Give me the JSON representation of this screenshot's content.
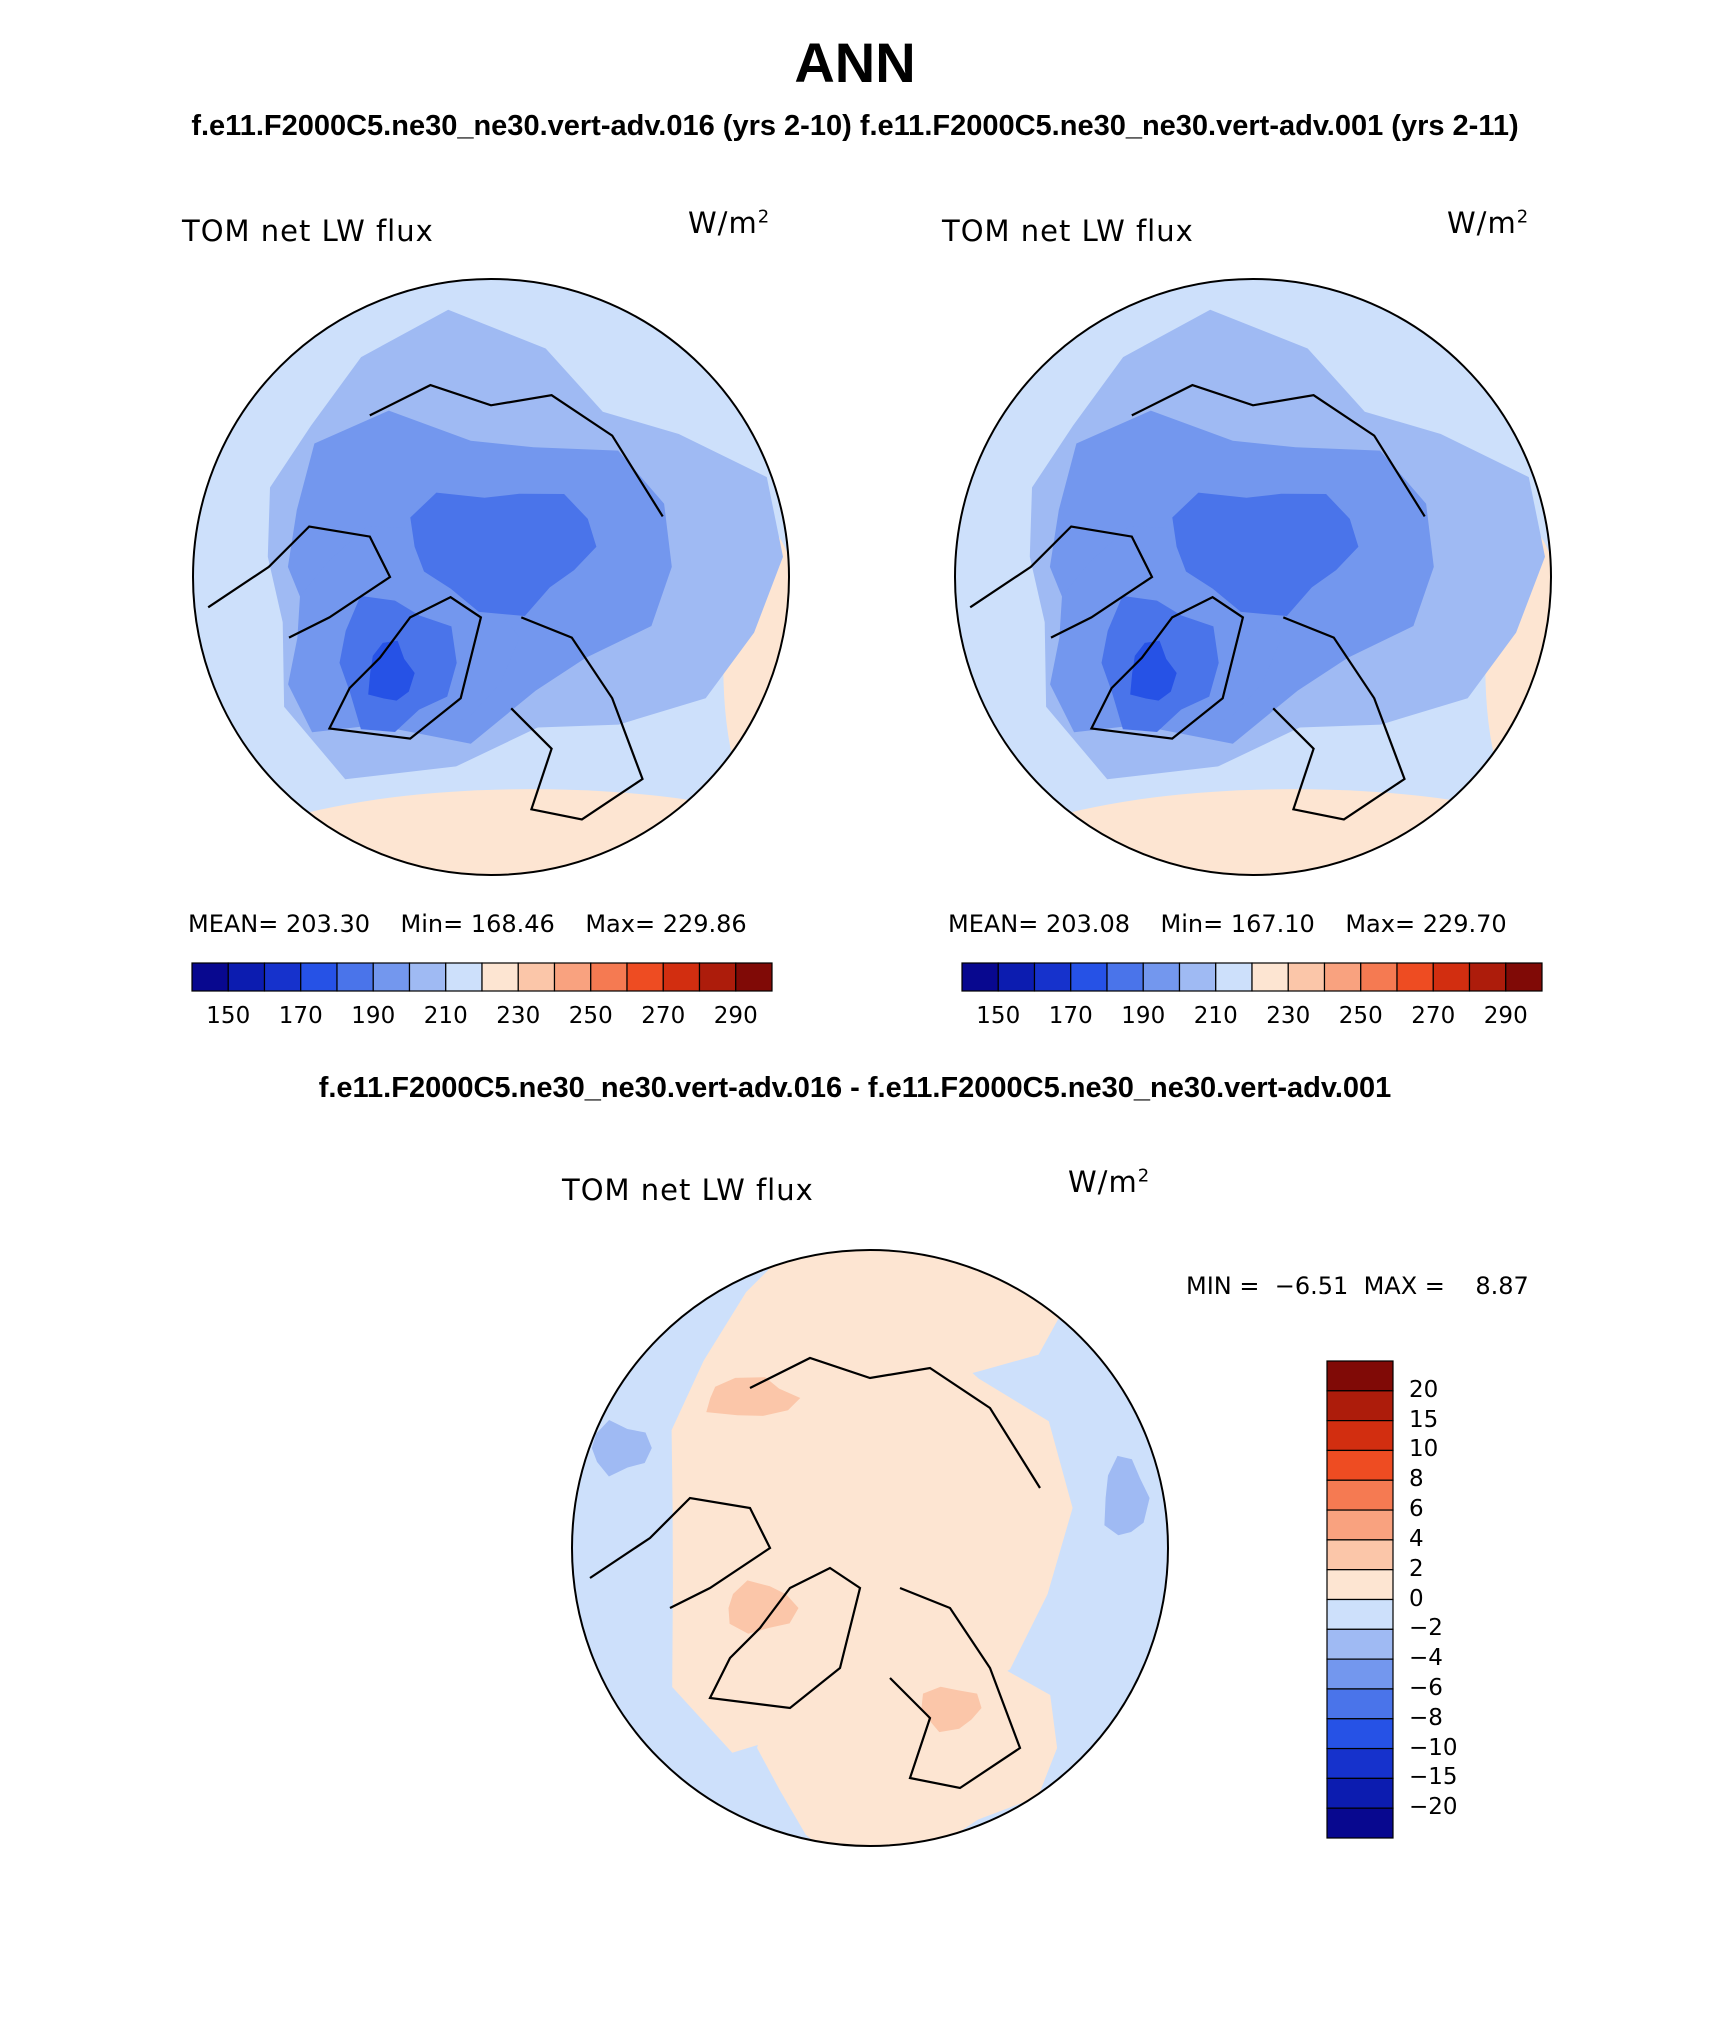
{
  "title": "ANN",
  "subtitle": "f.e11.F2000C5.ne30_ne30.vert-adv.016 (yrs 2-10) f.e11.F2000C5.ne30_ne30.vert-adv.001 (yrs 2-11)",
  "diff_title": "f.e11.F2000C5.ne30_ne30.vert-adv.016 - f.e11.F2000C5.ne30_ne30.vert-adv.001",
  "panels": [
    {
      "variable": "TOM net LW flux",
      "units_base": "W/m",
      "units_exp": "2",
      "stats": {
        "mean_label": "MEAN=",
        "mean": "203.30",
        "min_label": "Min=",
        "min": "168.46",
        "max_label": "Max=",
        "max": "229.86"
      }
    },
    {
      "variable": "TOM net LW flux",
      "units_base": "W/m",
      "units_exp": "2",
      "stats": {
        "mean_label": "MEAN=",
        "mean": "203.08",
        "min_label": "Min=",
        "min": "167.10",
        "max_label": "Max=",
        "max": "229.70"
      }
    }
  ],
  "diff_panel": {
    "variable": "TOM net LW flux",
    "units_base": "W/m",
    "units_exp": "2",
    "min_label": "MIN =",
    "min": "−6.51",
    "max_label": "MAX =",
    "max": "8.87"
  },
  "colorbar_main": {
    "colors": [
      "#08088f",
      "#0c1cb0",
      "#1632cc",
      "#2652e6",
      "#4a74ea",
      "#7397ee",
      "#9fbaf3",
      "#cde0fb",
      "#fde5d2",
      "#fbc6a9",
      "#f9a27f",
      "#f57a52",
      "#ee4c22",
      "#d22e10",
      "#ad1c0b",
      "#800a06"
    ],
    "labels": [
      "150",
      "170",
      "190",
      "210",
      "230",
      "250",
      "270",
      "290"
    ]
  },
  "colorbar_diff": {
    "colors": [
      "#800a06",
      "#ad1c0b",
      "#d22e10",
      "#ee4c22",
      "#f57a52",
      "#f9a27f",
      "#fbc6a9",
      "#fde5d2",
      "#cde0fb",
      "#9fbaf3",
      "#7397ee",
      "#4a74ea",
      "#2652e6",
      "#1632cc",
      "#0c1cb0",
      "#08088f"
    ],
    "labels": [
      "20",
      "15",
      "10",
      "8",
      "6",
      "4",
      "2",
      "0",
      "−2",
      "−4",
      "−6",
      "−8",
      "−10",
      "−15",
      "−20"
    ]
  },
  "map_colors": {
    "main_levels": [
      "#fde5d2",
      "#cde0fb",
      "#9fbaf3",
      "#7397ee",
      "#4a74ea",
      "#2652e6"
    ],
    "diff_levels": [
      "#cde0fb",
      "#fde5d2",
      "#fbc6a9",
      "#9fbaf3"
    ]
  }
}
